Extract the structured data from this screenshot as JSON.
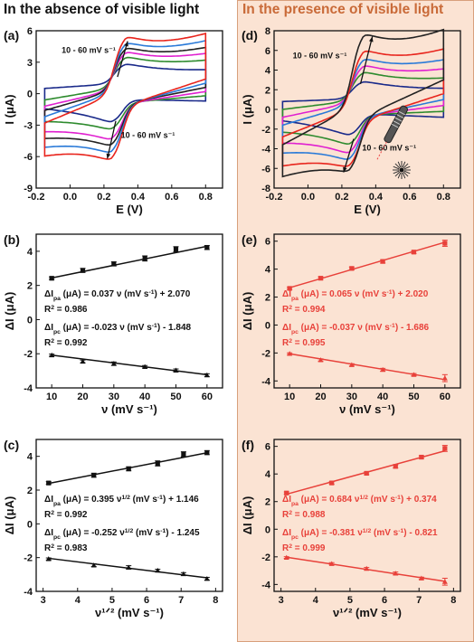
{
  "headings": {
    "left": "In the absence of visible light",
    "right": "In the presence of visible light"
  },
  "colors": {
    "right_panel_bg": "#fbe3d3",
    "right_heading": "#c96a38",
    "fit_black": "#111111",
    "fit_red": "#e8413a"
  },
  "chart_data": [
    {
      "id": "a",
      "panel_label": "(a)",
      "type": "line",
      "xlabel": "E (V)",
      "ylabel": "I (μA)",
      "xlim": [
        -0.2,
        0.9
      ],
      "ylim": [
        -9,
        6
      ],
      "xticks": [
        -0.2,
        0.0,
        0.2,
        0.4,
        0.6,
        0.8
      ],
      "yticks": [
        -9,
        -6,
        -3,
        0,
        3,
        6
      ],
      "annotations": [
        "10 - 60 mV s⁻¹",
        "10 - 60 mV s⁻¹"
      ],
      "series": [
        {
          "color": "#1a2a8a",
          "peak_anodic": 2.6,
          "peak_cathodic": -2.5,
          "base_start": 0.5,
          "base_end": 1.5
        },
        {
          "color": "#2e8b2e",
          "peak_anodic": 3.3,
          "peak_cathodic": -3.2,
          "base_start": -0.6,
          "base_end": 2.0
        },
        {
          "color": "#e020d0",
          "peak_anodic": 3.8,
          "peak_cathodic": -4.2,
          "base_start": -1.2,
          "base_end": 2.4
        },
        {
          "color": "#222222",
          "peak_anodic": 4.2,
          "peak_cathodic": -4.8,
          "base_start": -1.6,
          "base_end": 2.8
        },
        {
          "color": "#2a7ad8",
          "peak_anodic": 4.7,
          "peak_cathodic": -5.5,
          "base_start": -2.2,
          "base_end": 3.2
        },
        {
          "color": "#e8241c",
          "peak_anodic": 5.3,
          "peak_cathodic": -6.2,
          "base_start": -2.8,
          "base_end": 3.6
        }
      ]
    },
    {
      "id": "d",
      "panel_label": "(d)",
      "type": "line",
      "xlabel": "E (V)",
      "ylabel": "I (μA)",
      "xlim": [
        -0.2,
        0.9
      ],
      "ylim": [
        -8,
        8
      ],
      "xticks": [
        -0.2,
        0.0,
        0.2,
        0.4,
        0.6,
        0.8
      ],
      "yticks": [
        -8,
        -6,
        -4,
        -2,
        0,
        2,
        4,
        6,
        8
      ],
      "annotations": [
        "10 - 60 mV s⁻¹",
        "10 - 60 mV s⁻¹"
      ],
      "series": [
        {
          "color": "#1a2a8a",
          "peak_anodic": 2.6,
          "peak_cathodic": -2.4,
          "base_start": 0.8,
          "base_end": 1.4
        },
        {
          "color": "#2e8b2e",
          "peak_anodic": 3.6,
          "peak_cathodic": -3.4,
          "base_start": 0.0,
          "base_end": 2.0
        },
        {
          "color": "#e020d0",
          "peak_anodic": 4.3,
          "peak_cathodic": -4.3,
          "base_start": -0.8,
          "base_end": 2.6
        },
        {
          "color": "#2a7ad8",
          "peak_anodic": 5.0,
          "peak_cathodic": -5.0,
          "base_start": -1.6,
          "base_end": 3.2
        },
        {
          "color": "#e8241c",
          "peak_anodic": 5.9,
          "peak_cathodic": -5.7,
          "base_start": -2.8,
          "base_end": 3.8
        },
        {
          "color": "#222222",
          "peak_anodic": 7.6,
          "peak_cathodic": -6.2,
          "base_start": -3.6,
          "base_end": 5.2
        }
      ]
    },
    {
      "id": "b",
      "panel_label": "(b)",
      "type": "scatter",
      "xlabel": "ν (mV s⁻¹)",
      "ylabel": "ΔI (μA)",
      "xlim": [
        5,
        65
      ],
      "ylim": [
        -4,
        5
      ],
      "xticks": [
        10,
        20,
        30,
        40,
        50,
        60
      ],
      "yticks": [
        -4,
        -2,
        0,
        2,
        4
      ],
      "fit_color": "#111111",
      "series": [
        {
          "name": "anodic",
          "x": [
            10,
            20,
            30,
            40,
            50,
            60
          ],
          "y": [
            2.42,
            2.88,
            3.26,
            3.58,
            4.12,
            4.22
          ],
          "err": [
            0.08,
            0.12,
            0.12,
            0.15,
            0.15,
            0.12
          ],
          "fit": [
            0.037,
            2.07
          ]
        },
        {
          "name": "cathodic",
          "x": [
            10,
            20,
            30,
            40,
            50,
            60
          ],
          "y": [
            -2.08,
            -2.45,
            -2.58,
            -2.76,
            -2.97,
            -3.25
          ],
          "err": [
            0.06,
            0.08,
            0.1,
            0.07,
            0.08,
            0.08
          ],
          "fit": [
            -0.023,
            -1.848
          ]
        }
      ],
      "equations": [
        {
          "pre": "ΔI",
          "sub": "pa",
          "mid": " (μA) = 0.037 ν (mV s",
          "sup": "-1",
          "post": ") + 2.070"
        },
        {
          "pre": "R",
          "sup": "2",
          "post": " = 0.986"
        },
        {
          "pre": "ΔI",
          "sub": "pc",
          "mid": " (μA) = -0.023 ν (mV s",
          "sup": "-1",
          "post": ") - 1.848"
        },
        {
          "pre": "R",
          "sup": "2",
          "post": " = 0.992"
        }
      ]
    },
    {
      "id": "e",
      "panel_label": "(e)",
      "type": "scatter",
      "xlabel": "ν (mV s⁻¹)",
      "ylabel": "ΔI (μA)",
      "xlim": [
        5,
        65
      ],
      "ylim": [
        -4.5,
        6.5
      ],
      "xticks": [
        10,
        20,
        30,
        40,
        50,
        60
      ],
      "yticks": [
        -4,
        -2,
        0,
        2,
        4,
        6
      ],
      "fit_color": "#e8413a",
      "series": [
        {
          "name": "anodic",
          "x": [
            10,
            20,
            30,
            40,
            50,
            60
          ],
          "y": [
            2.62,
            3.35,
            4.05,
            4.55,
            5.22,
            5.85
          ],
          "err": [
            0.08,
            0.1,
            0.1,
            0.12,
            0.1,
            0.22
          ],
          "fit": [
            0.065,
            2.02
          ]
        },
        {
          "name": "cathodic",
          "x": [
            10,
            20,
            30,
            40,
            50,
            60
          ],
          "y": [
            -2.05,
            -2.5,
            -2.85,
            -3.2,
            -3.55,
            -3.8
          ],
          "err": [
            0.06,
            0.08,
            0.08,
            0.1,
            0.08,
            0.25
          ],
          "fit": [
            -0.037,
            -1.686
          ]
        }
      ],
      "equations": [
        {
          "pre": "ΔI",
          "sub": "pa",
          "mid": " (μA) =  0.065 ν (mV s",
          "sup": "-1",
          "post": ") + 2.020"
        },
        {
          "pre": "R",
          "sup": "2",
          "post": " = 0.994"
        },
        {
          "pre": "ΔI",
          "sub": "pc",
          "mid": " (μA) = -0.037 ν (mV s",
          "sup": "-1",
          "post": ") - 1.686"
        },
        {
          "pre": "R",
          "sup": "2",
          "post": " = 0.995"
        }
      ]
    },
    {
      "id": "c",
      "panel_label": "(c)",
      "type": "scatter",
      "xlabel": "ν¹ᐟ² (mV s⁻¹)",
      "ylabel": "ΔI (μA)",
      "xlim": [
        2.8,
        8.2
      ],
      "ylim": [
        -4,
        5
      ],
      "xticks": [
        3,
        4,
        5,
        6,
        7,
        8
      ],
      "yticks": [
        -4,
        -2,
        0,
        2,
        4
      ],
      "fit_color": "#111111",
      "series": [
        {
          "name": "anodic",
          "x": [
            3.16,
            4.47,
            5.48,
            6.32,
            7.07,
            7.75
          ],
          "y": [
            2.42,
            2.88,
            3.26,
            3.58,
            4.12,
            4.22
          ],
          "err": [
            0.08,
            0.12,
            0.12,
            0.15,
            0.15,
            0.12
          ],
          "fit": [
            0.395,
            1.146
          ]
        },
        {
          "name": "cathodic",
          "x": [
            3.16,
            4.47,
            5.48,
            6.32,
            7.07,
            7.75
          ],
          "y": [
            -2.08,
            -2.45,
            -2.58,
            -2.76,
            -2.97,
            -3.25
          ],
          "err": [
            0.06,
            0.08,
            0.1,
            0.07,
            0.08,
            0.08
          ],
          "fit": [
            -0.252,
            -1.245
          ]
        }
      ],
      "equations": [
        {
          "pre": "ΔI",
          "sub": "pa",
          "mid": " (μA) = 0.395 ν",
          "sup": "1/2",
          "mid2": " (mV s",
          "sup2": "-1",
          "post": ") + 1.146"
        },
        {
          "pre": "R",
          "sup": "2",
          "post": " = 0.992"
        },
        {
          "pre": "ΔI",
          "sub": "pc",
          "mid": " (μA) = -0.252 ν",
          "sup": "1/2",
          "mid2": " (mV s",
          "sup2": "-1",
          "post": ") - 1.245"
        },
        {
          "pre": "R",
          "sup": "2",
          "post": " = 0.983"
        }
      ]
    },
    {
      "id": "f",
      "panel_label": "(f)",
      "type": "scatter",
      "xlabel": "ν¹ᐟ² (mV s⁻¹)",
      "ylabel": "ΔI (μA)",
      "xlim": [
        2.8,
        8.2
      ],
      "ylim": [
        -4.5,
        6.5
      ],
      "xticks": [
        3,
        4,
        5,
        6,
        7,
        8
      ],
      "yticks": [
        -4,
        -2,
        0,
        2,
        4,
        6
      ],
      "fit_color": "#e8413a",
      "series": [
        {
          "name": "anodic",
          "x": [
            3.16,
            4.47,
            5.48,
            6.32,
            7.07,
            7.75
          ],
          "y": [
            2.62,
            3.35,
            4.05,
            4.55,
            5.22,
            5.85
          ],
          "err": [
            0.08,
            0.1,
            0.1,
            0.12,
            0.1,
            0.22
          ],
          "fit": [
            0.684,
            0.374
          ]
        },
        {
          "name": "cathodic",
          "x": [
            3.16,
            4.47,
            5.48,
            6.32,
            7.07,
            7.75
          ],
          "y": [
            -2.05,
            -2.5,
            -2.85,
            -3.2,
            -3.55,
            -3.8
          ],
          "err": [
            0.06,
            0.08,
            0.08,
            0.1,
            0.08,
            0.25
          ],
          "fit": [
            -0.381,
            -0.821
          ]
        }
      ],
      "equations": [
        {
          "pre": "ΔI",
          "sub": "pa",
          "mid": " (μA) = 0.684 ν",
          "sup": "1/2",
          "mid2": " (mV s",
          "sup2": "-1",
          "post": ") + 0.374"
        },
        {
          "pre": "R",
          "sup": "2",
          "post": " = 0.988"
        },
        {
          "pre": "ΔI",
          "sub": "pc",
          "mid": " (μA) = -0.381 ν",
          "sup": "1/2",
          "mid2": " (mV s",
          "sup2": "-1",
          "post": ") - 0.821"
        },
        {
          "pre": "R",
          "sup": "2",
          "post": " = 0.999"
        }
      ]
    }
  ]
}
